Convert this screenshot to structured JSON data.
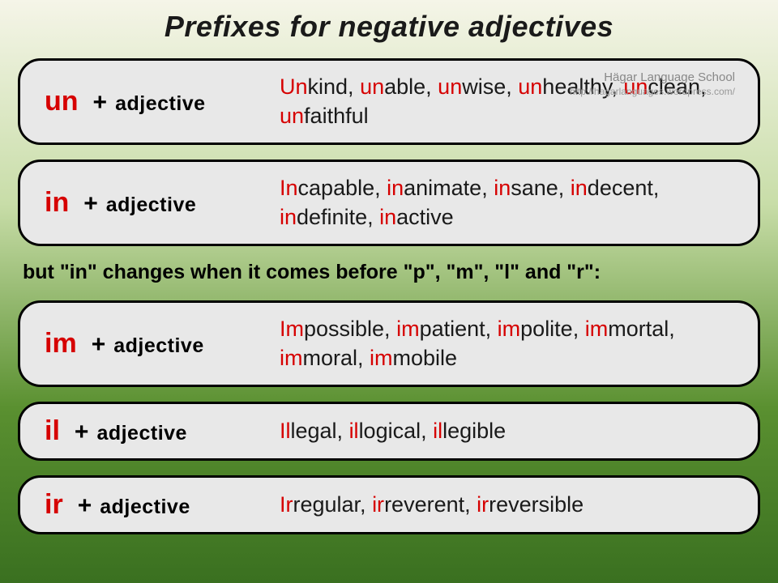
{
  "title": "Prefixes for negative adjectives",
  "attribution": {
    "name": "Hägar Language School",
    "url": "http://hagarlanguages.wordpress.com/"
  },
  "note": "but \"in\" changes when it comes before \"p\", \"m\", \"l\" and \"r\":",
  "adj_word": "adjective",
  "plus": "+",
  "cards": [
    {
      "prefix": "un",
      "words": [
        "kind",
        "able",
        "wise",
        "healthy",
        "clean",
        "faithful"
      ]
    },
    {
      "prefix": "in",
      "words": [
        "capable",
        "animate",
        "sane",
        "decent",
        "definite",
        "active"
      ]
    },
    {
      "prefix": "im",
      "words": [
        "possible",
        "patient",
        "polite",
        "mortal",
        "moral",
        "mobile"
      ]
    },
    {
      "prefix": "il",
      "words": [
        "legal",
        "logical",
        "legible"
      ]
    },
    {
      "prefix": "ir",
      "words": [
        "regular",
        "reverent",
        "reversible"
      ]
    }
  ],
  "colors": {
    "prefix": "#d60000",
    "text": "#1a1a1a",
    "card_bg": "#e8e8e8",
    "border": "#000000"
  }
}
